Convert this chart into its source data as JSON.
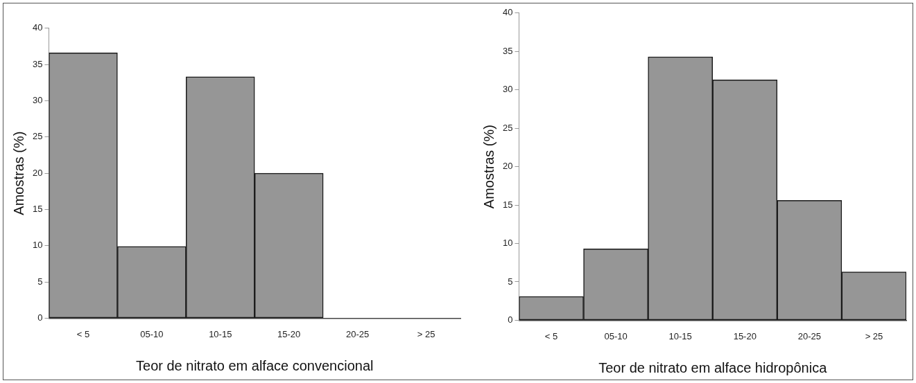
{
  "chart_data": [
    {
      "type": "bar",
      "categories": [
        "< 5",
        "05-10",
        "10-15",
        "15-20",
        "20-25",
        "> 25"
      ],
      "values": [
        36.6,
        9.9,
        33.3,
        20.0,
        0,
        0
      ],
      "color": "#969696",
      "ylabel": "Amostras (%)",
      "xlabel": "Teor de nitrato em alface convencional",
      "ylim": [
        0,
        40
      ],
      "yticks": [
        0,
        5,
        10,
        15,
        20,
        25,
        30,
        35,
        40
      ],
      "grid": false
    },
    {
      "type": "bar",
      "categories": [
        "< 5",
        "05-10",
        "10-15",
        "15-20",
        "20-25",
        "> 25"
      ],
      "values": [
        3.1,
        9.3,
        34.3,
        31.3,
        15.6,
        6.3
      ],
      "color": "#969696",
      "ylabel": "Amostras (%)",
      "xlabel": "Teor de nitrato em alface hidropônica",
      "ylim": [
        0,
        40
      ],
      "yticks": [
        0,
        5,
        10,
        15,
        20,
        25,
        30,
        35,
        40
      ],
      "grid": false
    }
  ]
}
